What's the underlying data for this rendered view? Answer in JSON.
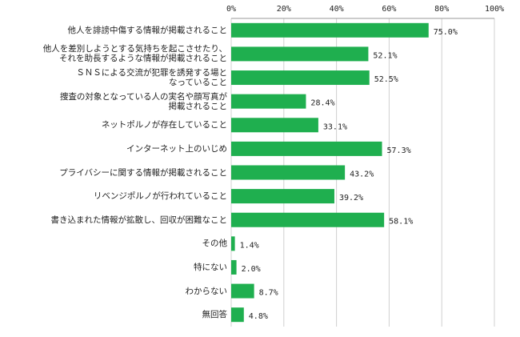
{
  "chart_data": {
    "type": "bar",
    "orientation": "horizontal",
    "categories": [
      "他人を誹謗中傷する情報が掲載されること",
      "他人を差別しようとする気持ちを起こさせたり、\nそれを助長するような情報が掲載されること",
      "ＳＮＳによる交流が犯罪を誘発する場と\nなっていること",
      "捜査の対象となっている人の実名や顔写真が\n掲載されること",
      "ネットポルノが存在していること",
      "インターネット上のいじめ",
      "プライバシーに関する情報が掲載されること",
      "リベンジポルノが行われていること",
      "書き込まれた情報が拡散し、回収が困難なこと",
      "その他",
      "特にない",
      "わからない",
      "無回答"
    ],
    "values": [
      75.0,
      52.1,
      52.5,
      28.4,
      33.1,
      57.3,
      43.2,
      39.2,
      58.1,
      1.4,
      2.0,
      8.7,
      4.8
    ],
    "value_labels": [
      "75.0%",
      "52.1%",
      "52.5%",
      "28.4%",
      "33.1%",
      "57.3%",
      "43.2%",
      "39.2%",
      "58.1%",
      "1.4%",
      "2.0%",
      "8.7%",
      "4.8%"
    ],
    "color": "#1faf4f",
    "xlim": [
      0,
      100
    ],
    "xticks": [
      {
        "value": 0,
        "label": "0%"
      },
      {
        "value": 20,
        "label": "20%"
      },
      {
        "value": 40,
        "label": "40%"
      },
      {
        "value": 60,
        "label": "60%"
      },
      {
        "value": 80,
        "label": "80%"
      },
      {
        "value": 100,
        "label": "100%"
      }
    ],
    "grid": true
  }
}
